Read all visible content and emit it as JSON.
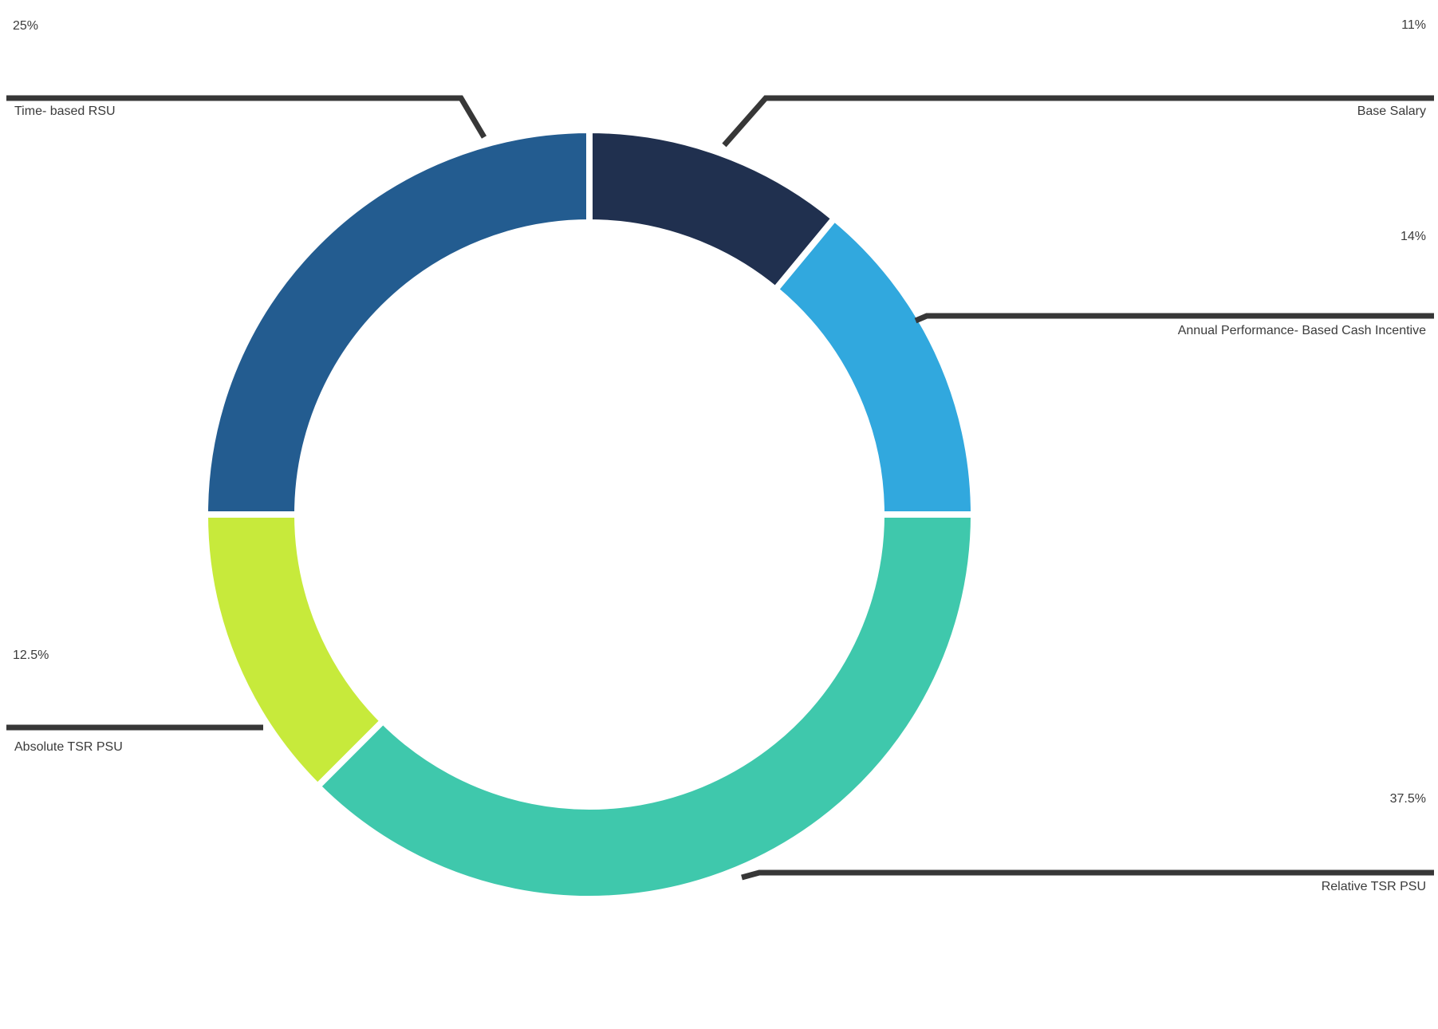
{
  "chart_data": {
    "type": "pie",
    "donut": true,
    "title": "",
    "direction": "clockwise",
    "start_angle_deg": 0,
    "inner_radius_ratio": 0.76,
    "legend_position": "callouts",
    "segments": [
      {
        "label": "Base Salary",
        "value": 11,
        "display": "11%",
        "color": "#20304F"
      },
      {
        "label": "Annual Performance-Based Cash Incentive",
        "value": 14,
        "display": "14%",
        "color": "#31A8DE"
      },
      {
        "label": "Relative TSR PSU",
        "value": 37.5,
        "display": "37.5%",
        "color": "#3FC8AC"
      },
      {
        "label": "Absolute TSR PSU",
        "value": 12.5,
        "display": "12.5%",
        "color": "#C7EA3B"
      },
      {
        "label": "Time-based RSU",
        "value": 25,
        "display": "25%",
        "color": "#235C90"
      }
    ]
  },
  "callouts": {
    "time_based_rsu": {
      "pct": "25%",
      "label": "Time-\nbased\nRSU"
    },
    "base_salary": {
      "pct": "11%",
      "label": "Base Salary"
    },
    "annual_cash": {
      "pct": "14%",
      "label": "Annual\nPerformance-\nBased Cash\nIncentive"
    },
    "relative_tsr": {
      "pct": "37.5%",
      "label": "Relative\nTSR PSU"
    },
    "absolute_tsr": {
      "pct": "12.5%",
      "label": "Absolute\nTSR PSU"
    }
  },
  "colors": {
    "text": "#3B3B3B",
    "leader_line": "#373737",
    "separator": "#FFFFFF",
    "background": "#FFFFFF"
  }
}
